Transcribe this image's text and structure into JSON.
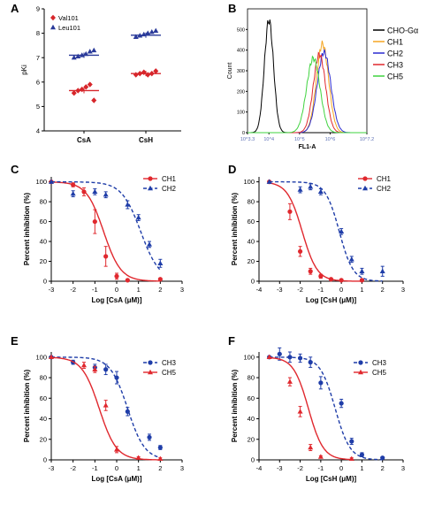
{
  "figure": {
    "panel_labels": [
      "A",
      "B",
      "C",
      "D",
      "E",
      "F"
    ]
  },
  "chart_data": [
    {
      "panel": "A",
      "type": "scatter",
      "ylabel": "pKi",
      "categories": [
        "CsA",
        "CsH"
      ],
      "yticks": [
        "4",
        "5",
        "6",
        "7",
        "8",
        "9"
      ],
      "ylim": [
        4,
        9
      ],
      "legend": [
        {
          "label": "Val101",
          "marker": "diamond",
          "color": "#d7262b"
        },
        {
          "label": "Leu101",
          "marker": "triangle",
          "color": "#2a3a9a"
        }
      ],
      "series": [
        {
          "name": "Val101",
          "color": "#d7262b",
          "marker": "diamond",
          "means": [
            5.65,
            6.35
          ],
          "points": [
            [
              5.55,
              5.65,
              5.7,
              5.8,
              5.9,
              5.25
            ],
            [
              6.3,
              6.35,
              6.4,
              6.3,
              6.35,
              6.45
            ]
          ]
        },
        {
          "name": "Leu101",
          "color": "#2a3a9a",
          "marker": "triangle",
          "means": [
            7.1,
            7.92
          ],
          "points": [
            [
              7.0,
              7.05,
              7.1,
              7.15,
              7.25,
              7.3
            ],
            [
              7.85,
              7.9,
              7.95,
              8.0,
              8.05,
              8.1
            ]
          ]
        }
      ]
    },
    {
      "panel": "B",
      "type": "line",
      "xlabel": "FL1-A",
      "ylabel": "Count",
      "xticks": [
        "10^3.3",
        "10^4",
        "10^5",
        "10^6",
        "10^7.2"
      ],
      "xlim": [
        3.3,
        7.2
      ],
      "yticks": [
        "0",
        "100",
        "200",
        "300",
        "400",
        "500"
      ],
      "ylim": [
        0,
        600
      ],
      "series": [
        {
          "name": "CHO-Gα",
          "color": "#000000",
          "peak_log": 4.0,
          "height": 545,
          "width": 0.15
        },
        {
          "name": "CH1",
          "color": "#f5a623",
          "peak_log": 5.75,
          "height": 430,
          "width": 0.2
        },
        {
          "name": "CH2",
          "color": "#2b2bd1",
          "peak_log": 5.8,
          "height": 390,
          "width": 0.22
        },
        {
          "name": "CH3",
          "color": "#e0282e",
          "peak_log": 5.65,
          "height": 380,
          "width": 0.2
        },
        {
          "name": "CH5",
          "color": "#3fd33f",
          "peak_log": 5.45,
          "height": 360,
          "width": 0.22
        }
      ]
    },
    {
      "panel": "C",
      "type": "line",
      "xlabel": "Log [CsA (μM)]",
      "ylabel": "Percent inhibition (%)",
      "xlim": [
        -3,
        3
      ],
      "xticks": [
        -3,
        -2,
        -1,
        0,
        1,
        2,
        3
      ],
      "ylim": [
        0,
        100
      ],
      "yticks": [
        0,
        20,
        40,
        60,
        80,
        100
      ],
      "series": [
        {
          "name": "CH1",
          "color": "#e0282e",
          "marker": "circle",
          "dash": false,
          "logIC50": -0.6,
          "hill": 1.1,
          "x": [
            -3,
            -2,
            -1.5,
            -1,
            -0.5,
            0,
            0.5,
            2
          ],
          "y": [
            100,
            97,
            90,
            60,
            25,
            5,
            1,
            2
          ],
          "err": [
            0,
            2,
            4,
            12,
            10,
            3,
            1,
            1
          ]
        },
        {
          "name": "CH2",
          "color": "#1f3da8",
          "marker": "triangle",
          "dash": true,
          "logIC50": 1.1,
          "hill": 1.0,
          "x": [
            -3,
            -2,
            -1,
            -0.5,
            0.5,
            1,
            1.5,
            2
          ],
          "y": [
            100,
            88,
            90,
            87,
            77,
            64,
            37,
            18
          ],
          "err": [
            0,
            3,
            3,
            3,
            4,
            3,
            3,
            4
          ]
        }
      ]
    },
    {
      "panel": "D",
      "type": "line",
      "xlabel": "Log [CsH (μM)]",
      "ylabel": "Percent inhibition (%)",
      "xlim": [
        -4,
        3
      ],
      "xticks": [
        -4,
        -3,
        -2,
        -1,
        0,
        1,
        2,
        3
      ],
      "ylim": [
        0,
        100
      ],
      "yticks": [
        0,
        20,
        40,
        60,
        80,
        100
      ],
      "series": [
        {
          "name": "CH1",
          "color": "#e0282e",
          "marker": "circle",
          "dash": false,
          "logIC50": -1.9,
          "hill": 1.2,
          "x": [
            -3.5,
            -2.5,
            -2,
            -1.5,
            -1,
            -0.5,
            0,
            1
          ],
          "y": [
            100,
            70,
            30,
            10,
            5,
            2,
            1,
            1
          ],
          "err": [
            0,
            8,
            5,
            3,
            2,
            1,
            1,
            1
          ]
        },
        {
          "name": "CH2",
          "color": "#1f3da8",
          "marker": "triangle",
          "dash": true,
          "logIC50": -0.1,
          "hill": 1.3,
          "x": [
            -3.5,
            -2,
            -1.5,
            -1,
            0,
            0.5,
            1,
            2
          ],
          "y": [
            100,
            92,
            95,
            90,
            50,
            22,
            10,
            10
          ],
          "err": [
            0,
            3,
            3,
            3,
            3,
            3,
            3,
            5
          ]
        }
      ]
    },
    {
      "panel": "E",
      "type": "line",
      "xlabel": "Log [CsA (μM)]",
      "ylabel": "Percent inhibition (%)",
      "xlim": [
        -3,
        3
      ],
      "xticks": [
        -3,
        -2,
        -1,
        0,
        1,
        2,
        3
      ],
      "ylim": [
        0,
        100
      ],
      "yticks": [
        0,
        20,
        40,
        60,
        80,
        100
      ],
      "series": [
        {
          "name": "CH3",
          "color": "#1f3da8",
          "marker": "circle",
          "dash": true,
          "logIC50": 0.5,
          "hill": 1.1,
          "x": [
            -3,
            -2,
            -1,
            -0.5,
            0,
            0.5,
            1.5,
            2
          ],
          "y": [
            100,
            95,
            90,
            88,
            80,
            47,
            22,
            12
          ],
          "err": [
            0,
            2,
            3,
            5,
            6,
            4,
            3,
            2
          ]
        },
        {
          "name": "CH5",
          "color": "#e0282e",
          "marker": "triangle",
          "dash": false,
          "logIC50": -0.8,
          "hill": 1.1,
          "x": [
            -3,
            -1.5,
            -1,
            -0.5,
            0,
            1,
            2
          ],
          "y": [
            100,
            92,
            88,
            53,
            10,
            2,
            1
          ],
          "err": [
            0,
            3,
            3,
            5,
            3,
            1,
            1
          ]
        }
      ]
    },
    {
      "panel": "F",
      "type": "line",
      "xlabel": "Log [CsH (μM)]",
      "ylabel": "Percent inhibition (%)",
      "xlim": [
        -4,
        3
      ],
      "xticks": [
        -4,
        -3,
        -2,
        -1,
        0,
        1,
        2,
        3
      ],
      "ylim": [
        0,
        100
      ],
      "yticks": [
        0,
        20,
        40,
        60,
        80,
        100
      ],
      "series": [
        {
          "name": "CH3",
          "color": "#1f3da8",
          "marker": "circle",
          "dash": true,
          "logIC50": -0.3,
          "hill": 1.2,
          "x": [
            -3.5,
            -3,
            -2.5,
            -2,
            -1.5,
            -1,
            0,
            0.5,
            1,
            2
          ],
          "y": [
            100,
            103,
            100,
            99,
            95,
            75,
            55,
            18,
            5,
            2
          ],
          "err": [
            0,
            6,
            5,
            4,
            5,
            6,
            4,
            3,
            2,
            1
          ]
        },
        {
          "name": "CH5",
          "color": "#e0282e",
          "marker": "triangle",
          "dash": false,
          "logIC50": -1.6,
          "hill": 1.2,
          "x": [
            -3.5,
            -2.5,
            -2,
            -1.5,
            -1,
            0.5
          ],
          "y": [
            100,
            76,
            47,
            12,
            3,
            1
          ],
          "err": [
            0,
            4,
            5,
            3,
            1,
            1
          ]
        }
      ]
    }
  ]
}
